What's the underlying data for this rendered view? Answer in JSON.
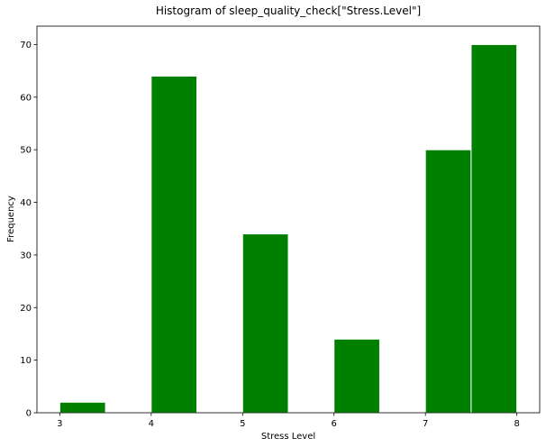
{
  "chart_data": {
    "type": "bar",
    "title": "Histogram of sleep_quality_check[\"Stress.Level\"]",
    "xlabel": "Stress Level",
    "ylabel": "Frequency",
    "bins": [
      {
        "start": 3.0,
        "end": 3.5,
        "count": 2
      },
      {
        "start": 3.5,
        "end": 4.0,
        "count": 0
      },
      {
        "start": 4.0,
        "end": 4.5,
        "count": 64
      },
      {
        "start": 4.5,
        "end": 5.0,
        "count": 0
      },
      {
        "start": 5.0,
        "end": 5.5,
        "count": 34
      },
      {
        "start": 5.5,
        "end": 6.0,
        "count": 0
      },
      {
        "start": 6.0,
        "end": 6.5,
        "count": 14
      },
      {
        "start": 6.5,
        "end": 7.0,
        "count": 0
      },
      {
        "start": 7.0,
        "end": 7.5,
        "count": 50
      },
      {
        "start": 7.5,
        "end": 8.0,
        "count": 70
      }
    ],
    "xlim": [
      2.75,
      8.25
    ],
    "ylim": [
      0,
      73.5
    ],
    "xticks": [
      "3",
      "4",
      "5",
      "6",
      "7",
      "8"
    ],
    "yticks": [
      "0",
      "10",
      "20",
      "30",
      "40",
      "50",
      "60",
      "70"
    ],
    "bar_color": "#008000",
    "edge_color": "#ffffff",
    "grid": false
  }
}
